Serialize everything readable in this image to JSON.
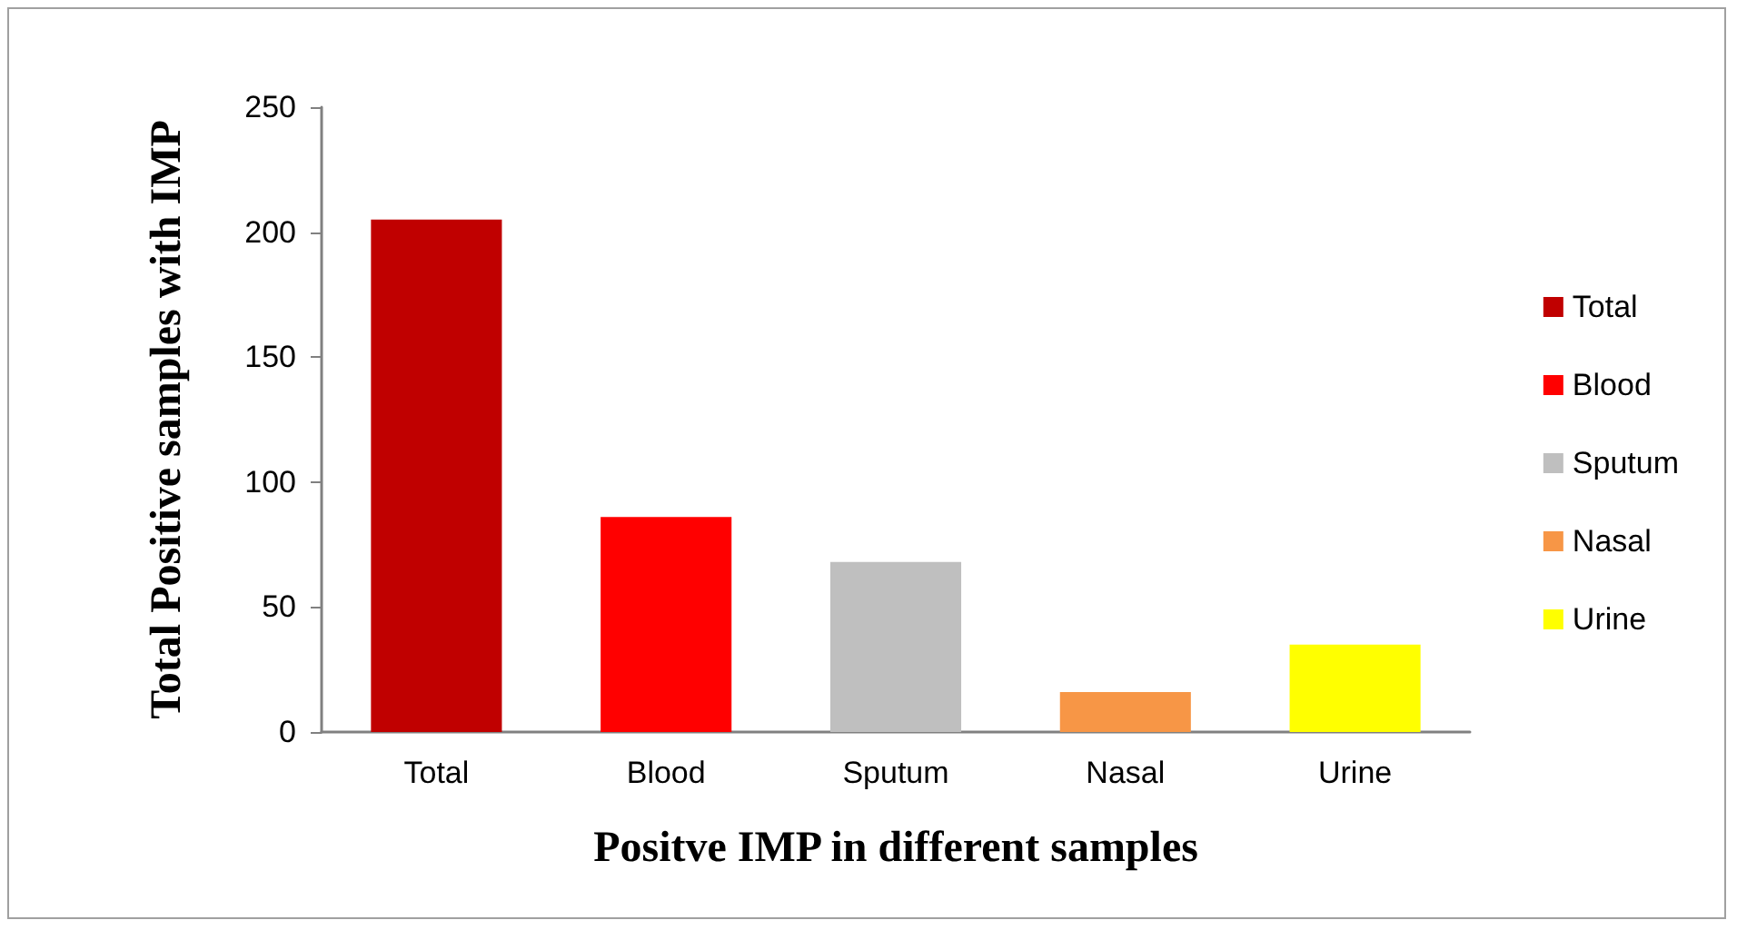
{
  "chart_data": {
    "type": "bar",
    "xlabel": "Positve IMP in different samples",
    "ylabel": "Total Positive samples with IMP",
    "categories": [
      "Total",
      "Blood",
      "Sputum",
      "Nasal",
      "Urine"
    ],
    "stacked": true,
    "series": [
      {
        "name": "Total",
        "color": "#c00000",
        "values": [
          205,
          null,
          null,
          null,
          null
        ]
      },
      {
        "name": "Blood",
        "color": "#ff0000",
        "values": [
          null,
          86,
          null,
          null,
          null
        ]
      },
      {
        "name": "Sputum",
        "color": "#bfbfbf",
        "values": [
          null,
          null,
          68,
          null,
          null
        ]
      },
      {
        "name": "Nasal",
        "color": "#f79646",
        "values": [
          null,
          null,
          null,
          16,
          null
        ]
      },
      {
        "name": "Urine",
        "color": "#ffff00",
        "values": [
          null,
          null,
          null,
          null,
          35
        ]
      }
    ],
    "ylim": [
      0,
      250
    ],
    "yticks": [
      0,
      50,
      100,
      150,
      200,
      250
    ],
    "legend": "right"
  }
}
